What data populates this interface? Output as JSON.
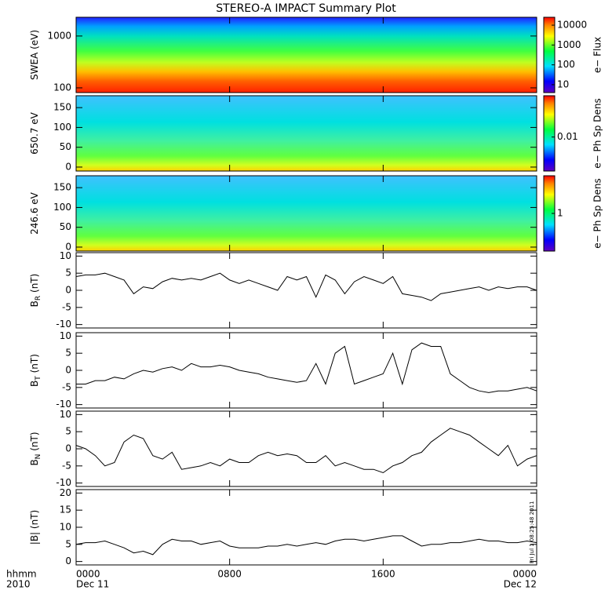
{
  "title": "STEREO-A IMPACT Summary Plot",
  "x_axis_label": "hhmm",
  "year_label": "2010",
  "stamp": "Fri Jul 1 08:25:48 2011",
  "chart_data": [
    {
      "type": "heatmap",
      "ylabel": "SWEA (eV)",
      "log": true,
      "ylim": [
        81,
        2300
      ],
      "yticks": [
        100,
        1000
      ],
      "clim": [
        4,
        25000
      ],
      "cticks": [
        10,
        100,
        1000,
        10000
      ],
      "clabel": "e− Flux",
      "palette": "swea"
    },
    {
      "type": "heatmap",
      "ylabel": "650.7 eV",
      "ylim": [
        -10,
        180
      ],
      "yticks": [
        0,
        50,
        100,
        150
      ],
      "clim": [
        0.0015,
        0.1
      ],
      "cticks": [
        0.01
      ],
      "clabel": "e− Ph Sp Dens",
      "palette": "pad"
    },
    {
      "type": "heatmap",
      "ylabel": "246.6 eV",
      "ylim": [
        -10,
        180
      ],
      "yticks": [
        0,
        50,
        100,
        150
      ],
      "clim": [
        0.1,
        10
      ],
      "cticks": [
        1
      ],
      "clabel": "e− Ph Sp Dens",
      "palette": "pad"
    },
    {
      "type": "line",
      "ylabel": "B",
      "ylabel_sub": "R",
      "yunit": "(nT)",
      "ylim": [
        -11,
        11
      ],
      "yticks": [
        -10,
        -5,
        0,
        5,
        10
      ],
      "color": "#000000",
      "x": [
        0,
        0.5,
        1,
        1.5,
        2,
        2.5,
        3,
        3.5,
        4,
        4.5,
        5,
        5.5,
        6,
        6.5,
        7,
        7.5,
        8,
        8.5,
        9,
        9.5,
        10,
        10.5,
        11,
        11.5,
        12,
        12.5,
        13,
        13.5,
        14,
        14.5,
        15,
        15.5,
        16,
        16.5,
        17,
        17.5,
        18,
        18.5,
        19,
        19.5,
        20,
        20.5,
        21,
        21.5,
        22,
        22.5,
        23,
        23.5,
        24
      ],
      "values": [
        4,
        4.5,
        4.5,
        5,
        4,
        3,
        -1,
        1,
        0.5,
        2.5,
        3.5,
        3,
        3.5,
        3,
        4,
        5,
        3,
        2,
        3,
        2,
        1,
        0,
        4,
        3,
        4,
        -2,
        4.5,
        3,
        -1,
        2.5,
        4,
        3,
        2,
        4,
        -1,
        -1.5,
        -2,
        -3,
        -1,
        -0.5,
        0,
        0.5,
        1,
        0,
        1,
        0.5,
        1,
        1,
        0
      ]
    },
    {
      "type": "line",
      "ylabel": "B",
      "ylabel_sub": "T",
      "yunit": "(nT)",
      "ylim": [
        -11,
        11
      ],
      "yticks": [
        -10,
        -5,
        0,
        5,
        10
      ],
      "color": "#000000",
      "x": [
        0,
        0.5,
        1,
        1.5,
        2,
        2.5,
        3,
        3.5,
        4,
        4.5,
        5,
        5.5,
        6,
        6.5,
        7,
        7.5,
        8,
        8.5,
        9,
        9.5,
        10,
        10.5,
        11,
        11.5,
        12,
        12.5,
        13,
        13.5,
        14,
        14.5,
        15,
        15.5,
        16,
        16.5,
        17,
        17.5,
        18,
        18.5,
        19,
        19.5,
        20,
        20.5,
        21,
        21.5,
        22,
        22.5,
        23,
        23.5,
        24
      ],
      "values": [
        -4,
        -4,
        -3,
        -3,
        -2,
        -2.5,
        -1,
        0,
        -0.5,
        0.5,
        1,
        0,
        2,
        1,
        1,
        1.5,
        1,
        0,
        -0.5,
        -1,
        -2,
        -2.5,
        -3,
        -3.5,
        -3,
        2,
        -4,
        5,
        7,
        -4,
        -3,
        -2,
        -1,
        5,
        -4,
        6,
        8,
        7,
        7,
        -1,
        -3,
        -5,
        -6,
        -6.5,
        -6,
        -6,
        -5.5,
        -5,
        -6
      ]
    },
    {
      "type": "line",
      "ylabel": "B",
      "ylabel_sub": "N",
      "yunit": "(nT)",
      "ylim": [
        -11,
        11
      ],
      "yticks": [
        -10,
        -5,
        0,
        5,
        10
      ],
      "color": "#000000",
      "x": [
        0,
        0.5,
        1,
        1.5,
        2,
        2.5,
        3,
        3.5,
        4,
        4.5,
        5,
        5.5,
        6,
        6.5,
        7,
        7.5,
        8,
        8.5,
        9,
        9.5,
        10,
        10.5,
        11,
        11.5,
        12,
        12.5,
        13,
        13.5,
        14,
        14.5,
        15,
        15.5,
        16,
        16.5,
        17,
        17.5,
        18,
        18.5,
        19,
        19.5,
        20,
        20.5,
        21,
        21.5,
        22,
        22.5,
        23,
        23.5,
        24
      ],
      "values": [
        1,
        0,
        -2,
        -5,
        -4,
        2,
        4,
        3,
        -2,
        -3,
        -1,
        -6,
        -5.5,
        -5,
        -4,
        -5,
        -3,
        -4,
        -4,
        -2,
        -1,
        -2,
        -1.5,
        -2,
        -4,
        -4,
        -2,
        -5,
        -4,
        -5,
        -6,
        -6,
        -7,
        -5,
        -4,
        -2,
        -1,
        2,
        4,
        6,
        5,
        4,
        2,
        0,
        -2,
        1,
        -5,
        -3,
        -2
      ]
    },
    {
      "type": "line",
      "ylabel": "|B| (nT)",
      "ylim": [
        -1,
        21
      ],
      "yticks": [
        0,
        5,
        10,
        15,
        20
      ],
      "color": "#000000",
      "x": [
        0,
        0.5,
        1,
        1.5,
        2,
        2.5,
        3,
        3.5,
        4,
        4.5,
        5,
        5.5,
        6,
        6.5,
        7,
        7.5,
        8,
        8.5,
        9,
        9.5,
        10,
        10.5,
        11,
        11.5,
        12,
        12.5,
        13,
        13.5,
        14,
        14.5,
        15,
        15.5,
        16,
        16.5,
        17,
        17.5,
        18,
        18.5,
        19,
        19.5,
        20,
        20.5,
        21,
        21.5,
        22,
        22.5,
        23,
        23.5,
        24
      ],
      "values": [
        5,
        5.5,
        5.5,
        6,
        5,
        4,
        2.5,
        3,
        2,
        5,
        6.5,
        6,
        6,
        5,
        5.5,
        6,
        4.5,
        4,
        4,
        4,
        4.5,
        4.5,
        5,
        4.5,
        5,
        5.5,
        5,
        6,
        6.5,
        6.5,
        6,
        6.5,
        7,
        7.5,
        7.5,
        6,
        4.5,
        5,
        5,
        5.5,
        5.5,
        6,
        6.5,
        6,
        6,
        5.5,
        5.5,
        6,
        5.5
      ],
      "xlim": [
        0,
        24
      ],
      "xticks": [
        {
          "value": 0,
          "label": "0000"
        },
        {
          "value": 8,
          "label": "0800"
        },
        {
          "value": 16,
          "label": "1600"
        },
        {
          "value": 24,
          "label": "0000"
        }
      ],
      "date_labels": [
        {
          "value": 0,
          "label": "Dec 11"
        },
        {
          "value": 24,
          "label": "Dec 12"
        }
      ]
    }
  ]
}
